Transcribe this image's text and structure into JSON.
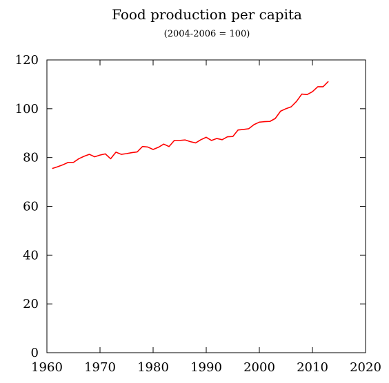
{
  "chart_data": {
    "type": "line",
    "title": "Food production per capita",
    "subtitle": "(2004-2006 = 100)",
    "xlabel": "",
    "ylabel": "",
    "xlim": [
      1960,
      2020
    ],
    "ylim": [
      0,
      120
    ],
    "x_ticks": [
      "1960",
      "1970",
      "1980",
      "1990",
      "2000",
      "2010",
      "2020"
    ],
    "y_ticks": [
      "0",
      "20",
      "40",
      "60",
      "80",
      "100",
      "120"
    ],
    "grid": false,
    "legend": "none",
    "series": [
      {
        "color": "#ff0000",
        "x": [
          1961,
          1962,
          1963,
          1964,
          1965,
          1966,
          1967,
          1968,
          1969,
          1970,
          1971,
          1972,
          1973,
          1974,
          1975,
          1976,
          1977,
          1978,
          1979,
          1980,
          1981,
          1982,
          1983,
          1984,
          1985,
          1986,
          1987,
          1988,
          1989,
          1990,
          1991,
          1992,
          1993,
          1994,
          1995,
          1996,
          1997,
          1998,
          1999,
          2000,
          2001,
          2002,
          2003,
          2004,
          2005,
          2006,
          2007,
          2008,
          2009,
          2010,
          2011,
          2012,
          2013
        ],
        "y": [
          75.5,
          76.2,
          77.0,
          78.0,
          78.0,
          79.5,
          80.5,
          81.3,
          80.3,
          81.0,
          81.5,
          79.5,
          82.2,
          81.3,
          81.6,
          82.0,
          82.3,
          84.5,
          84.3,
          83.3,
          84.2,
          85.5,
          84.5,
          87.0,
          87.0,
          87.2,
          86.5,
          86.0,
          87.3,
          88.3,
          87.0,
          87.8,
          87.3,
          88.5,
          88.6,
          91.3,
          91.5,
          91.8,
          93.5,
          94.5,
          94.7,
          94.8,
          96.0,
          99.0,
          100.0,
          100.8,
          103.0,
          106.0,
          105.8,
          107.0,
          109.0,
          109.0,
          111.2
        ]
      }
    ]
  }
}
